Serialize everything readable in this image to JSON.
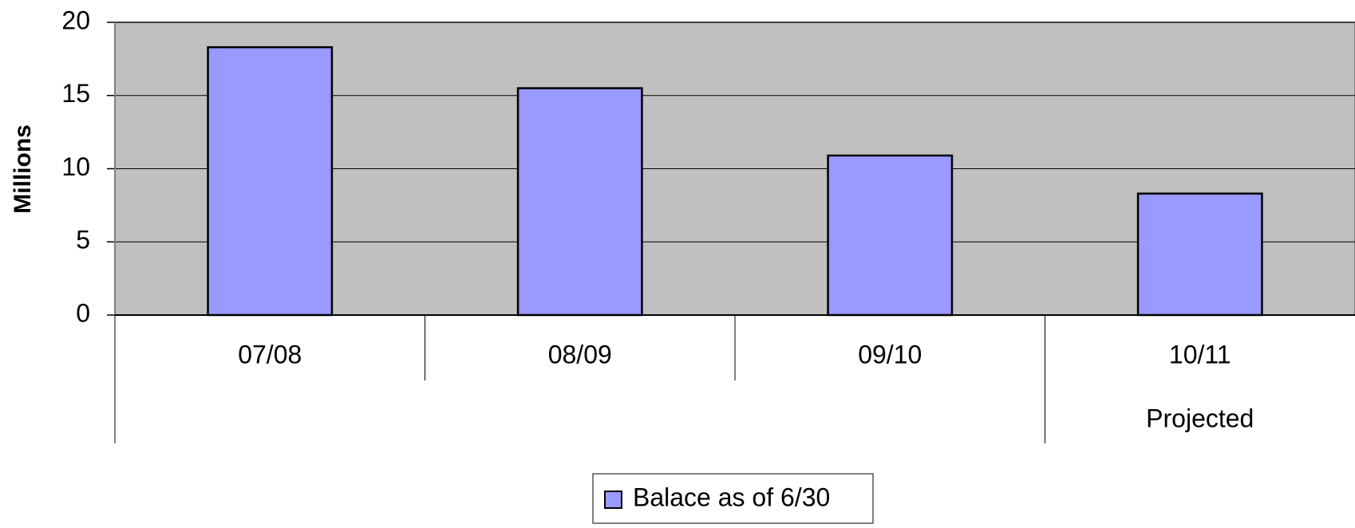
{
  "chart_data": {
    "type": "bar",
    "y_label": "Millions",
    "categories": [
      "07/08",
      "08/09",
      "09/10",
      "10/11"
    ],
    "category_groups": [
      null,
      null,
      null,
      "Projected"
    ],
    "series": [
      {
        "name": "Balace as of 6/30",
        "color": "#9999ff",
        "values": [
          18.3,
          15.5,
          10.9,
          8.3
        ]
      }
    ],
    "ylim": [
      0,
      20
    ],
    "yticks": [
      0,
      5,
      10,
      15,
      20
    ],
    "grid": true,
    "plot_background": "#c0c0c0",
    "legend": "bottom"
  }
}
